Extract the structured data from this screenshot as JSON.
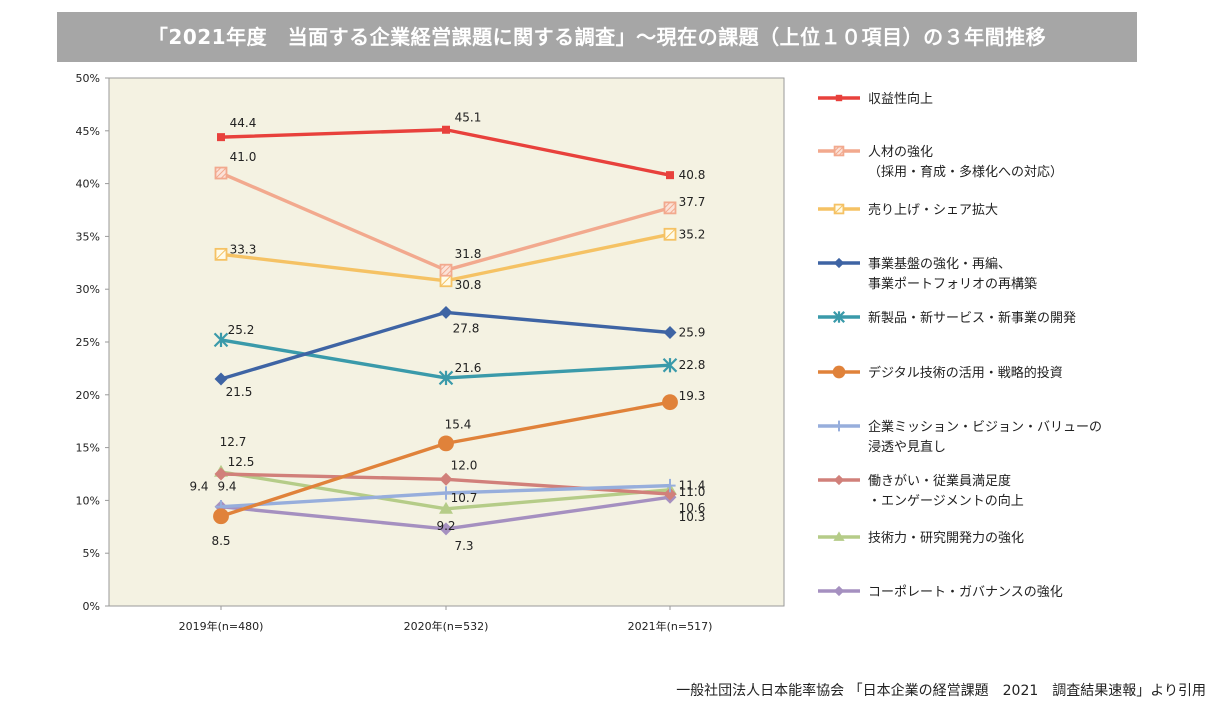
{
  "title": "「2021年度　当面する企業経営課題に関する調査」～現在の課題（上位１０項目）の３年間推移",
  "source": "一般社団法人日本能率協会 「日本企業の経営課題　2021　調査結果速報」より引用",
  "chart_data": {
    "type": "line",
    "categories": [
      "2019年(n=480)",
      "2020年(n=532)",
      "2021年(n=517)"
    ],
    "ylim": [
      0,
      50
    ],
    "yticks": [
      "0%",
      "5%",
      "10%",
      "15%",
      "20%",
      "25%",
      "30%",
      "35%",
      "40%",
      "45%",
      "50%"
    ],
    "grid": false,
    "legend": "right",
    "series": [
      {
        "name": "収益性向上",
        "lines": [
          "収益性向上"
        ],
        "values": [
          44.4,
          45.1,
          40.8
        ],
        "labels": [
          "44.4",
          "45.1",
          "40.8"
        ],
        "color": "#e8413c",
        "marker": "square"
      },
      {
        "name": "人材の強化（採用・育成・多様化への対応）",
        "lines": [
          "人材の強化",
          "（採用・育成・多様化への対応）"
        ],
        "values": [
          41.0,
          31.8,
          37.7
        ],
        "labels": [
          "41.0",
          "31.8",
          "37.7"
        ],
        "color": "#f2a98e",
        "marker": "square-hatch"
      },
      {
        "name": "売り上げ・シェア拡大",
        "lines": [
          "売り上げ・シェア拡大"
        ],
        "values": [
          33.3,
          30.8,
          35.2
        ],
        "labels": [
          "33.3",
          "30.8",
          "35.2"
        ],
        "color": "#f5c264",
        "marker": "square-open"
      },
      {
        "name": "事業基盤の強化・再編、事業ポートフォリオの再構築",
        "lines": [
          "事業基盤の強化・再編、",
          "事業ポートフォリオの再構築"
        ],
        "values": [
          21.5,
          27.8,
          25.9
        ],
        "labels": [
          "21.5",
          "27.8",
          "25.9"
        ],
        "color": "#3e64a4",
        "marker": "diamond"
      },
      {
        "name": "新製品・新サービス・新事業の開発",
        "lines": [
          "新製品・新サービス・新事業の開発"
        ],
        "values": [
          25.2,
          21.6,
          22.8
        ],
        "labels": [
          "25.2",
          "21.6",
          "22.8"
        ],
        "color": "#3a9aaa",
        "marker": "asterisk"
      },
      {
        "name": "デジタル技術の活用・戦略的投資",
        "lines": [
          "デジタル技術の活用・戦略的投資"
        ],
        "values": [
          8.5,
          15.4,
          19.3
        ],
        "labels": [
          "8.5",
          "15.4",
          "19.3"
        ],
        "color": "#e0823a",
        "marker": "circle"
      },
      {
        "name": "企業ミッション・ビジョン・バリューの浸透や見直し",
        "lines": [
          "企業ミッション・ビジョン・バリューの",
          "浸透や見直し"
        ],
        "values": [
          9.4,
          10.7,
          11.4
        ],
        "labels": [
          "9.4",
          "10.7",
          "11.4"
        ],
        "color": "#97aedc",
        "marker": "plus"
      },
      {
        "name": "働きがい・従業員満足度・エンゲージメントの向上",
        "lines": [
          "働きがい・従業員満足度",
          "・エンゲージメントの向上"
        ],
        "values": [
          12.5,
          12.0,
          10.6
        ],
        "labels": [
          "12.5",
          "12.0",
          "10.6"
        ],
        "color": "#d1807a",
        "marker": "diamond"
      },
      {
        "name": "技術力・研究開発力の強化",
        "lines": [
          "技術力・研究開発力の強化"
        ],
        "values": [
          12.7,
          9.2,
          11.0
        ],
        "labels": [
          "12.7",
          "9.2",
          "11.0"
        ],
        "color": "#b5cc88",
        "marker": "triangle"
      },
      {
        "name": "コーポレート・ガバナンスの強化",
        "lines": [
          "コーポレート・ガバナンスの強化"
        ],
        "values": [
          9.4,
          7.3,
          10.3
        ],
        "labels": [
          "9.4",
          "7.3",
          "10.3"
        ],
        "color": "#a590c0",
        "marker": "diamond"
      }
    ]
  }
}
